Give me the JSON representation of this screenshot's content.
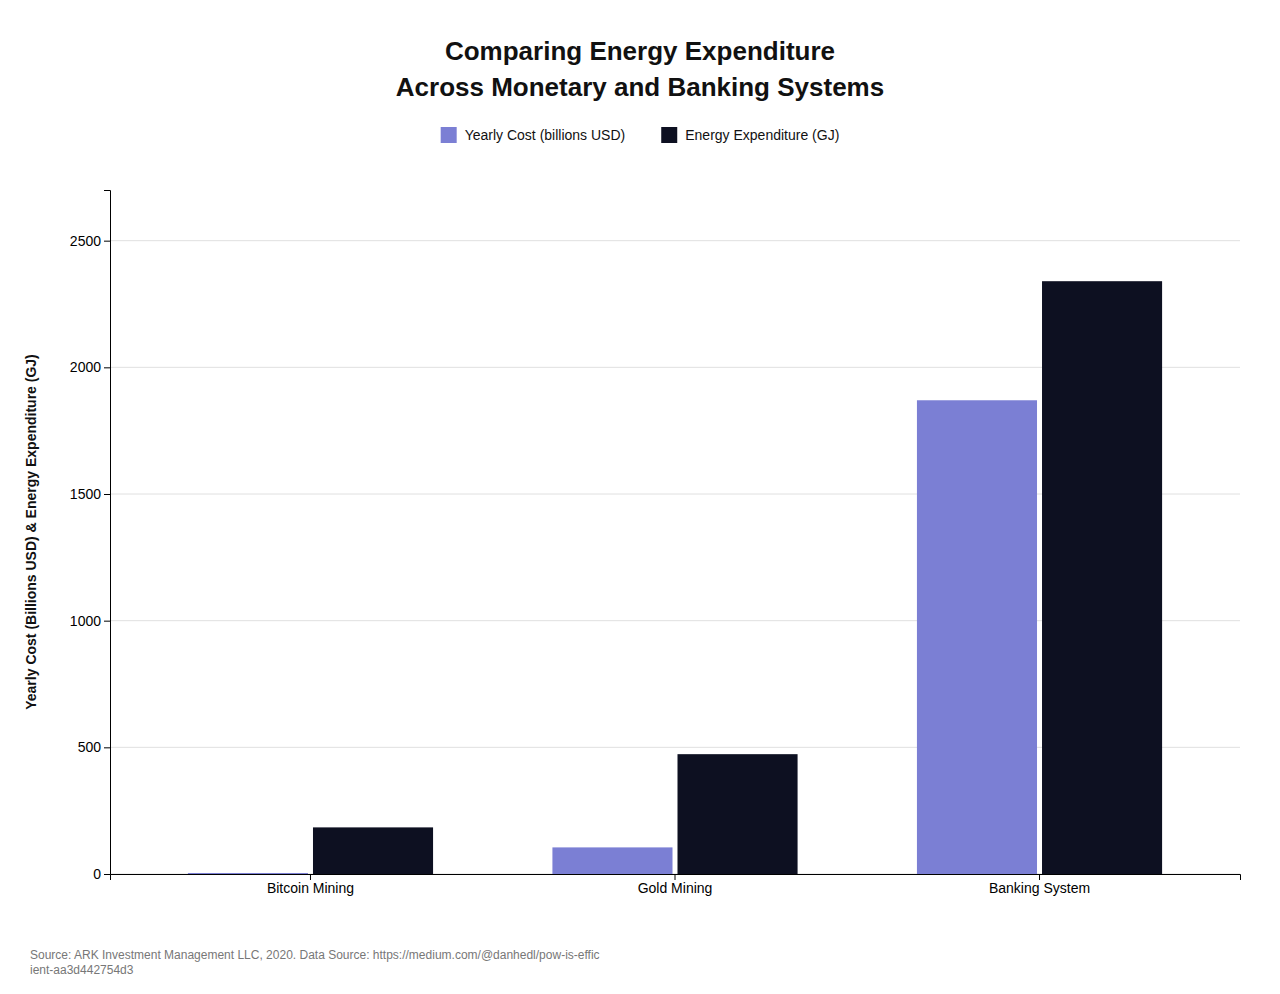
{
  "chart_data": {
    "type": "bar",
    "title": "Comparing Energy Expenditure",
    "subtitle": "Across Monetary and Banking Systems",
    "categories": [
      "Bitcoin Mining",
      "Gold Mining",
      "Banking System"
    ],
    "series": [
      {
        "name": "Yearly Cost (billions USD)",
        "color": "#7B7FD4",
        "values": [
          4,
          105,
          1870
        ]
      },
      {
        "name": "Energy Expenditure (GJ)",
        "color": "#0d1021",
        "values": [
          184,
          473,
          2340
        ]
      }
    ],
    "y_label": "Yearly Cost (Billions USD) & Energy Expenditure (GJ)",
    "ylim": [
      0,
      2700
    ],
    "yticks": [
      0,
      500,
      1000,
      1500,
      2000,
      2500
    ],
    "grid": true,
    "legend": "top",
    "annotations": [
      "Source: ARK Investment Management LLC, 2020. Data Source: https://medium.com/@danhedl/pow-is-effic\nient-aa3d442754d3"
    ]
  }
}
